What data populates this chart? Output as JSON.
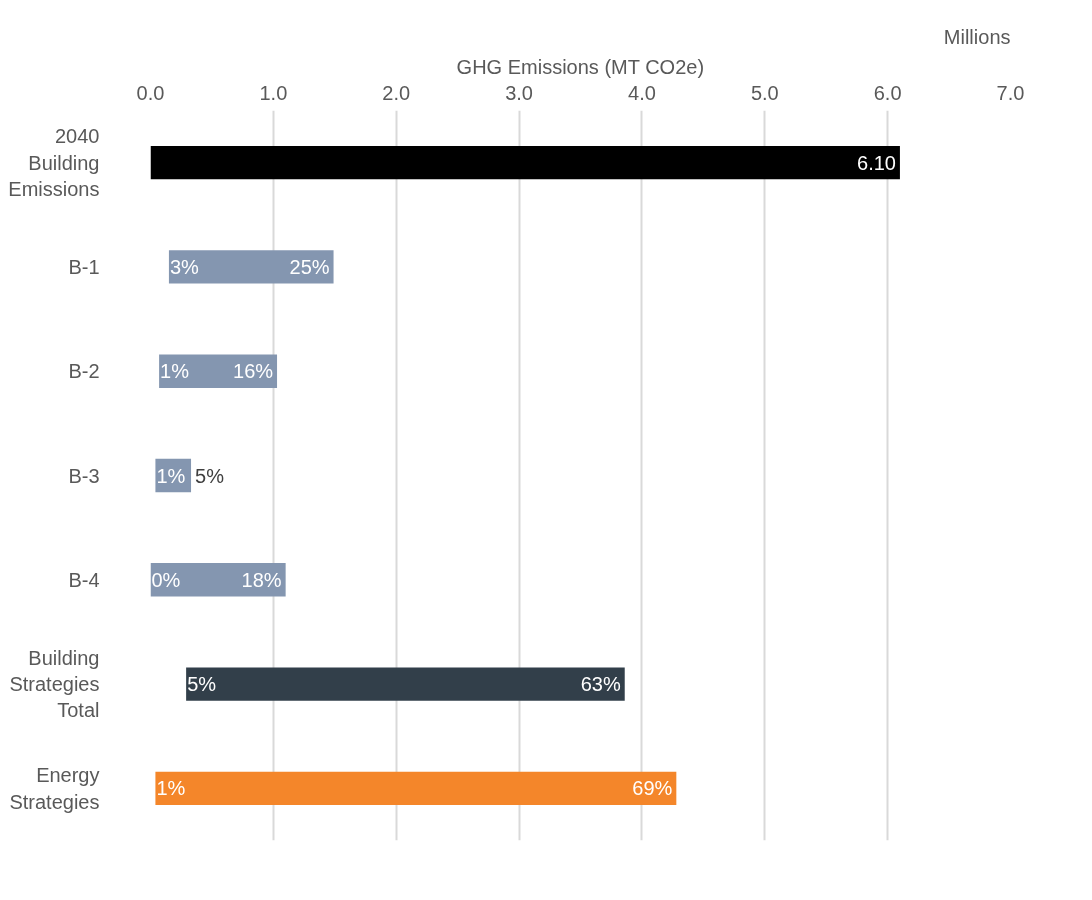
{
  "chart_data": {
    "type": "bar",
    "orientation": "horizontal",
    "xlabel": "GHG Emissions (MT CO2e)",
    "categories": [
      "2040 Building Emissions",
      "B-1",
      "B-2",
      "B-3",
      "B-4",
      "Building Strategies Total",
      "Energy Strategies"
    ],
    "base": [
      0,
      0.15,
      0.07,
      0.04,
      0,
      0.29,
      0.04
    ],
    "values": [
      6.1,
      1.34,
      0.96,
      0.29,
      1.1,
      3.57,
      4.24
    ],
    "colors": [
      "#000000",
      "#8496b0",
      "#8496b0",
      "#8496b0",
      "#8496b0",
      "#323f4a",
      "#f4862a"
    ],
    "value_labels": [
      "6.10",
      null,
      null,
      null,
      null,
      null,
      null
    ],
    "annotations": [
      "Millions",
      {
        "text": "3%",
        "x": 0.15,
        "y": "B-1"
      },
      {
        "text": "1%",
        "x": 0.07,
        "y": "B-2"
      },
      {
        "text": "1%",
        "x": 0.04,
        "y": "B-3"
      },
      {
        "text": "0%",
        "x": 0,
        "y": "B-4"
      },
      {
        "text": "5%",
        "x": 0.29,
        "y": "Building Strategies Total"
      },
      {
        "text": "1%",
        "x": 0.04,
        "y": "Energy Strategies"
      },
      {
        "text": "25%",
        "x": 1.49,
        "y": "B-1"
      },
      {
        "text": "16%",
        "x": 1.03,
        "y": "B-2"
      },
      {
        "text": "5%",
        "x": 0.33,
        "y": "B-3"
      },
      {
        "text": "18%",
        "x": 1.1,
        "y": "B-4"
      },
      {
        "text": "63%",
        "x": 3.86,
        "y": "Building Strategies Total"
      },
      {
        "text": "69%",
        "x": 4.28,
        "y": "Energy Strategies"
      }
    ],
    "xlim": [
      0,
      7
    ],
    "xticks": [
      {
        "value": 0,
        "label": "0.0"
      },
      {
        "value": 1,
        "label": "1.0"
      },
      {
        "value": 2,
        "label": "2.0"
      },
      {
        "value": 3,
        "label": "3.0"
      },
      {
        "value": 4,
        "label": "4.0"
      },
      {
        "value": 5,
        "label": "5.0"
      },
      {
        "value": 6,
        "label": "6.0"
      },
      {
        "value": 7,
        "label": "7.0"
      }
    ],
    "grid": "x"
  }
}
